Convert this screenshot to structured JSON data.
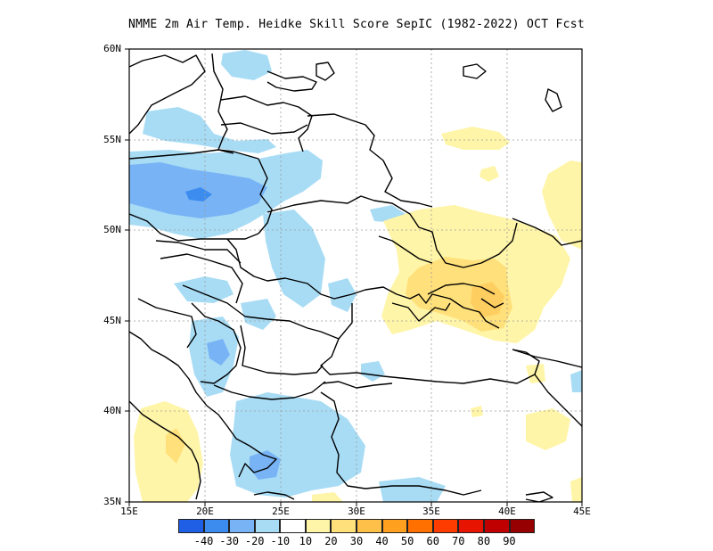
{
  "title": "NMME  2m Air Temp. Heidke Skill Score SepIC (1982-2022) OCT Fcst",
  "axes": {
    "lat_ticks": [
      "35N",
      "40N",
      "45N",
      "50N",
      "55N",
      "60N"
    ],
    "lon_ticks": [
      "15E",
      "20E",
      "25E",
      "30E",
      "35E",
      "40E",
      "45E"
    ],
    "lat_range": [
      35,
      60
    ],
    "lon_range": [
      15,
      45
    ],
    "grid": "dotted"
  },
  "legend": {
    "labels": [
      "-40",
      "-30",
      "-20",
      "-10",
      "10",
      "20",
      "30",
      "40",
      "50",
      "60",
      "70",
      "80",
      "90"
    ],
    "colors": [
      "#1f5fe6",
      "#3c8cf0",
      "#78b4f5",
      "#a8dcf5",
      "#ffffff",
      "#fff5a8",
      "#ffe07a",
      "#ffc04a",
      "#ffa01e",
      "#ff7000",
      "#ff3c00",
      "#e61400",
      "#c00000",
      "#960000"
    ]
  },
  "chart_data": {
    "type": "heatmap",
    "title": "NMME  2m Air Temp. Heidke Skill Score SepIC (1982-2022) OCT Fcst",
    "xlabel": "",
    "ylabel": "",
    "xlim": [
      15,
      45
    ],
    "ylim": [
      35,
      60
    ],
    "color_scale": [
      -40,
      -30,
      -20,
      -10,
      10,
      20,
      30,
      40,
      50,
      60,
      70,
      80,
      90
    ],
    "regions": [
      {
        "level": -10,
        "lon": 21,
        "lat": 52.4
      },
      {
        "level": -20,
        "lon": 20.5,
        "lat": 51.8
      },
      {
        "level": -30,
        "lon": 20,
        "lat": 52.0
      },
      {
        "level": -10,
        "lon": 24,
        "lat": 55.3
      },
      {
        "level": -20,
        "lon": 22.5,
        "lat": 43.2
      },
      {
        "level": -10,
        "lon": 26,
        "lat": 38.5
      },
      {
        "level": -20,
        "lon": 24.5,
        "lat": 37.2
      },
      {
        "level": 10,
        "lon": 37,
        "lat": 47.5
      },
      {
        "level": 20,
        "lon": 39,
        "lat": 46.0
      },
      {
        "level": 10,
        "lon": 18,
        "lat": 37.8
      },
      {
        "level": 20,
        "lon": 18,
        "lat": 37.8
      },
      {
        "level": 10,
        "lon": 44,
        "lat": 51.5
      },
      {
        "level": 10,
        "lon": 37,
        "lat": 55.2
      }
    ]
  }
}
